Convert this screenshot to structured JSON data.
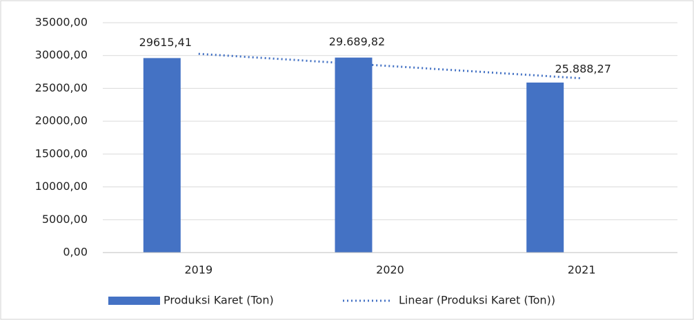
{
  "chart_data": {
    "type": "bar",
    "categories": [
      "2019",
      "2020",
      "2021"
    ],
    "series": [
      {
        "name": "Produksi Karet (Ton)",
        "color": "#4472c4",
        "values": [
          29615.41,
          29689.82,
          25888.27
        ],
        "value_labels": [
          "29615,41",
          "29.689,82",
          "25.888,27"
        ]
      },
      {
        "name": "Linear (Produksi Karet (Ton))",
        "color": "#4472c4",
        "type": "line",
        "dashed": true,
        "values": [
          30261.4,
          28397.83,
          26534.26
        ]
      }
    ],
    "ylim": [
      0,
      35000
    ],
    "yticks": [
      {
        "value": 0,
        "label": "0,00"
      },
      {
        "value": 5000,
        "label": "5000,00"
      },
      {
        "value": 10000,
        "label": "10000,00"
      },
      {
        "value": 15000,
        "label": "15000,00"
      },
      {
        "value": 20000,
        "label": "20000,00"
      },
      {
        "value": 25000,
        "label": "25000,00"
      },
      {
        "value": 30000,
        "label": "30000,00"
      },
      {
        "value": 35000,
        "label": "35000,00"
      }
    ],
    "grid": true,
    "legend": "bottom"
  }
}
